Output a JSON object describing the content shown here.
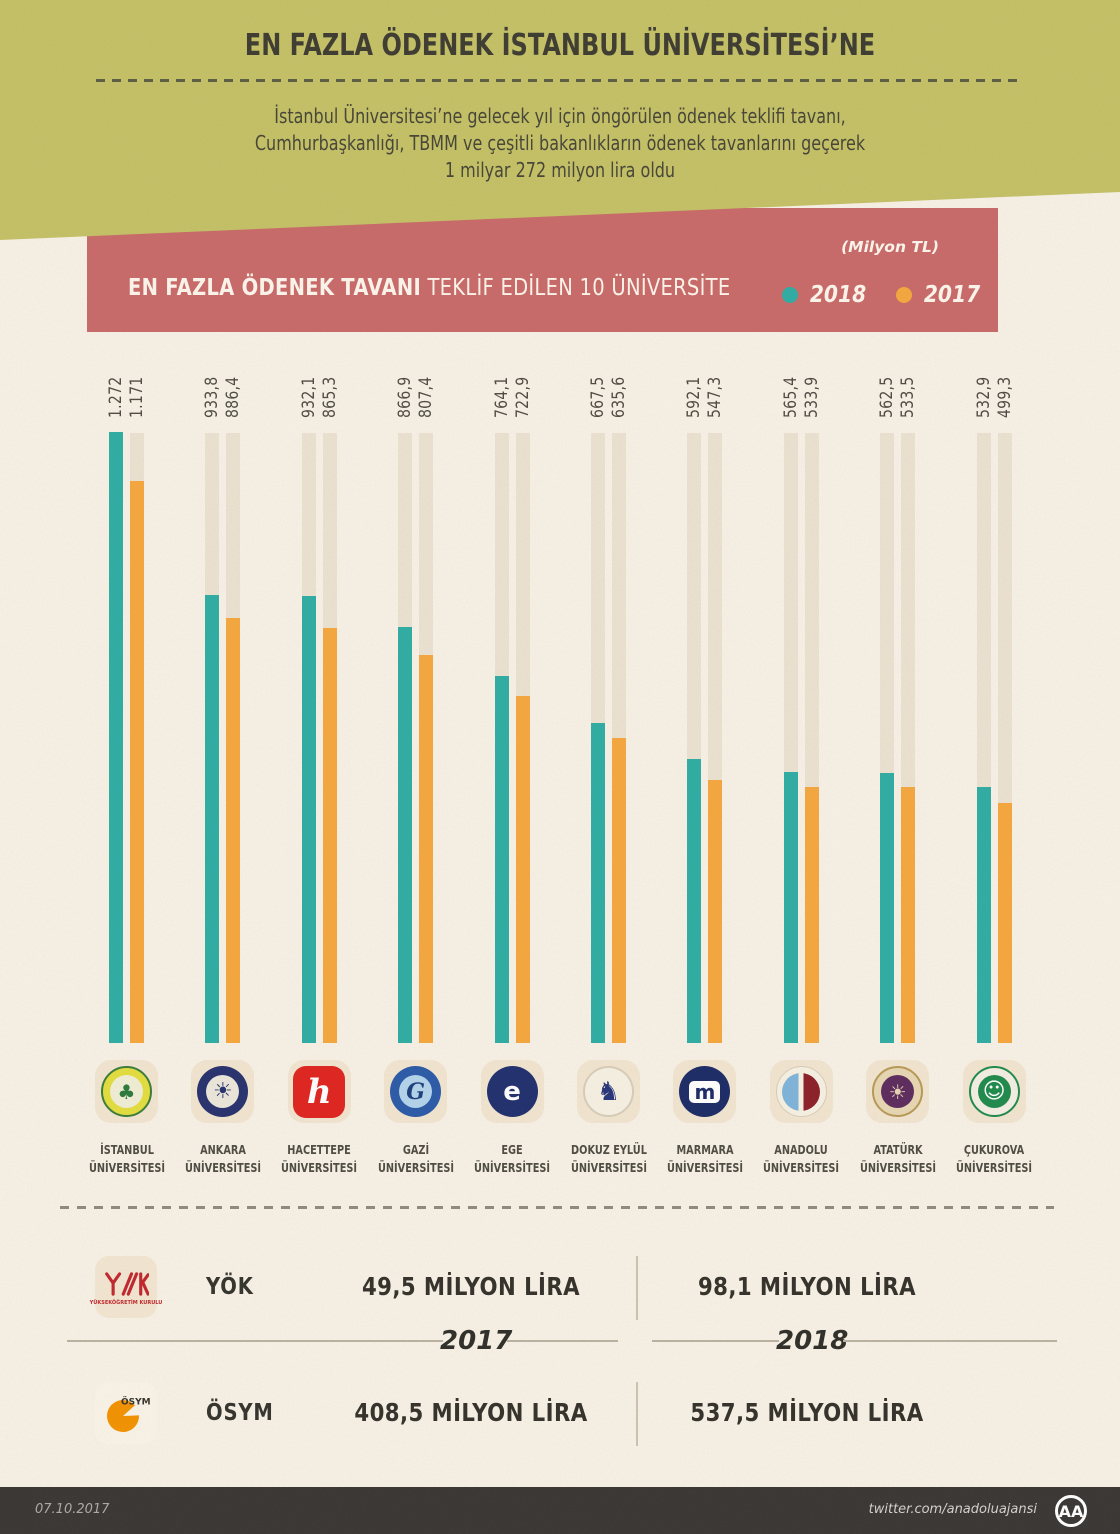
{
  "header": {
    "title": "EN FAZLA ÖDENEK İSTANBUL ÜNİVERSİTESİ’NE",
    "paragraph": [
      "İstanbul Üniversitesi’ne gelecek yıl için öngörülen ödenek teklifi tavanı,",
      "Cumhurbaşkanlığı, TBMM ve çeşitli bakanlıkların ödenek tavanlarını geçerek",
      "1 milyar 272 milyon lira oldu"
    ],
    "band_color": "#c4c166"
  },
  "banner": {
    "title_bold": "EN FAZLA ÖDENEK TAVANI",
    "title_rest": " TEKLİF EDİLEN 10 ÜNİVERSİTE",
    "unit_note": "(Milyon TL)",
    "bg": "#c96a69",
    "legend": [
      {
        "label": "2018",
        "color": "#2fada3"
      },
      {
        "label": "2017",
        "color": "#f6a73e"
      }
    ]
  },
  "chart_data": {
    "type": "bar",
    "unit": "Milyon TL",
    "title": "EN FAZLA ÖDENEK TAVANI TEKLİF EDİLEN 10 ÜNİVERSİTE",
    "categories": [
      "İSTANBUL ÜNİVERSİTESİ",
      "ANKARA ÜNİVERSİTESİ",
      "HACETTEPE ÜNİVERSİTESİ",
      "GAZİ ÜNİVERSİTESİ",
      "EGE ÜNİVERSİTESİ",
      "DOKUZ EYLÜL ÜNİVERSİTESİ",
      "MARMARA ÜNİVERSİTESİ",
      "ANADOLU ÜNİVERSİTESİ",
      "ATATÜRK ÜNİVERSİTESİ",
      "ÇUKUROVA ÜNİVERSİTESİ"
    ],
    "ylim": [
      0,
      1272
    ],
    "series": [
      {
        "name": "2018",
        "color": "#2fada3",
        "values": [
          1272,
          933.8,
          932.1,
          866.9,
          764.1,
          667.5,
          592.1,
          565.4,
          562.5,
          532.9
        ],
        "labels": [
          "1.272",
          "933,8",
          "932,1",
          "866,9",
          "764,1",
          "667,5",
          "592,1",
          "565,4",
          "562,5",
          "532,9"
        ]
      },
      {
        "name": "2017",
        "color": "#f6a73e",
        "values": [
          1171,
          886.4,
          865.3,
          807.4,
          722.9,
          635.6,
          547.3,
          533.9,
          533.5,
          499.3
        ],
        "labels": [
          "1.171",
          "886,4",
          "865,3",
          "807,4",
          "722,9",
          "635,6",
          "547,3",
          "533,9",
          "533,5",
          "499,3"
        ]
      }
    ]
  },
  "universities": [
    {
      "line1": "İSTANBUL",
      "line2": "ÜNİVERSİTESİ",
      "logo": "istanbul-university-seal",
      "emblem": {
        "type": "seal",
        "ring": "#e3de3e",
        "border": "#3a7d3a",
        "center": "#f1eed6",
        "glyph": "♣",
        "glyphColor": "#2c7a3c",
        "glyphSize": 20
      }
    },
    {
      "line1": "ANKARA",
      "line2": "ÜNİVERSİTESİ",
      "logo": "ankara-university-seal",
      "emblem": {
        "type": "seal",
        "ring": "#27316d",
        "border": "",
        "center": "#ece7da",
        "glyph": "☀",
        "glyphColor": "#27316d",
        "glyphSize": 22
      }
    },
    {
      "line1": "HACETTEPE",
      "line2": "ÜNİVERSİTESİ",
      "logo": "hacettepe-university-seal",
      "emblem": {
        "type": "square",
        "center": "#e0241f",
        "glyph": "h",
        "glyphColor": "#ffffff",
        "glyphSize": 34
      }
    },
    {
      "line1": "GAZİ",
      "line2": "ÜNİVERSİTESİ",
      "logo": "gazi-university-seal",
      "emblem": {
        "type": "seal",
        "ring": "#2b5aa7",
        "border": "",
        "center": "#b3d4ec",
        "glyph": "G",
        "glyphColor": "#1c3f7c",
        "glyphSize": 22,
        "italicSerif": true
      }
    },
    {
      "line1": "EGE",
      "line2": "ÜNİVERSİTESİ",
      "logo": "ege-university-seal",
      "emblem": {
        "type": "seal",
        "ring": "#20306e",
        "border": "",
        "center": "#20306e",
        "glyph": "e",
        "glyphColor": "#ffffff",
        "glyphSize": 26
      }
    },
    {
      "line1": "DOKUZ EYLÜL",
      "line2": "ÜNİVERSİTESİ",
      "logo": "dokuz-eylul-university-seal",
      "emblem": {
        "type": "seal",
        "ring": "#f7f1e3",
        "border": "#d8cdb8",
        "center": "#f7f1e3",
        "glyph": "♞",
        "glyphColor": "#27367a",
        "glyphSize": 26
      }
    },
    {
      "line1": "MARMARA",
      "line2": "ÜNİVERSİTESİ",
      "logo": "marmara-university-seal",
      "emblem": {
        "type": "seal",
        "ring": "#1c2b66",
        "border": "",
        "center": "#1c2b66",
        "glyph": "m",
        "glyphColor": "#1c2b66",
        "glyphBg": "#ffffff",
        "glyphSize": 20
      }
    },
    {
      "line1": "ANADOLU",
      "line2": "ÜNİVERSİTESİ",
      "logo": "anadolu-university-seal",
      "emblem": {
        "type": "split",
        "left": "#7fb4d9",
        "right": "#8c1f28"
      }
    },
    {
      "line1": "ATATÜRK",
      "line2": "ÜNİVERSİTESİ",
      "logo": "ataturk-university-seal",
      "emblem": {
        "type": "seal",
        "ring": "#e8d7b3",
        "border": "#b89a55",
        "center": "#5d2b5e",
        "glyph": "☀",
        "glyphColor": "#e8d7b3",
        "glyphSize": 20
      }
    },
    {
      "line1": "ÇUKUROVA",
      "line2": "ÜNİVERSİTESİ",
      "logo": "cukurova-university-seal",
      "emblem": {
        "type": "seal",
        "ring": "#f4efe2",
        "border": "#1f8a4c",
        "center": "#1f8a4c",
        "glyph": "☺",
        "glyphColor": "#ffffff",
        "glyphSize": 22
      }
    }
  ],
  "summary": {
    "year_left": "2017",
    "year_right": "2018",
    "rows": [
      {
        "org": "YÖK",
        "logo": "yok-logo",
        "logo_caption": "YÜKSEKÖĞRETİM KURULU",
        "val2017": "49,5 MİLYON LİRA",
        "val2018": "98,1 MİLYON LİRA"
      },
      {
        "org": "ÖSYM",
        "logo": "osym-logo",
        "logo_caption": "ÖSYM",
        "val2017": "408,5 MİLYON LİRA",
        "val2018": "537,5 MİLYON LİRA"
      }
    ]
  },
  "footer": {
    "date": "07.10.2017",
    "handle": "twitter.com/anadoluajansi",
    "logo": "aa-logo"
  }
}
